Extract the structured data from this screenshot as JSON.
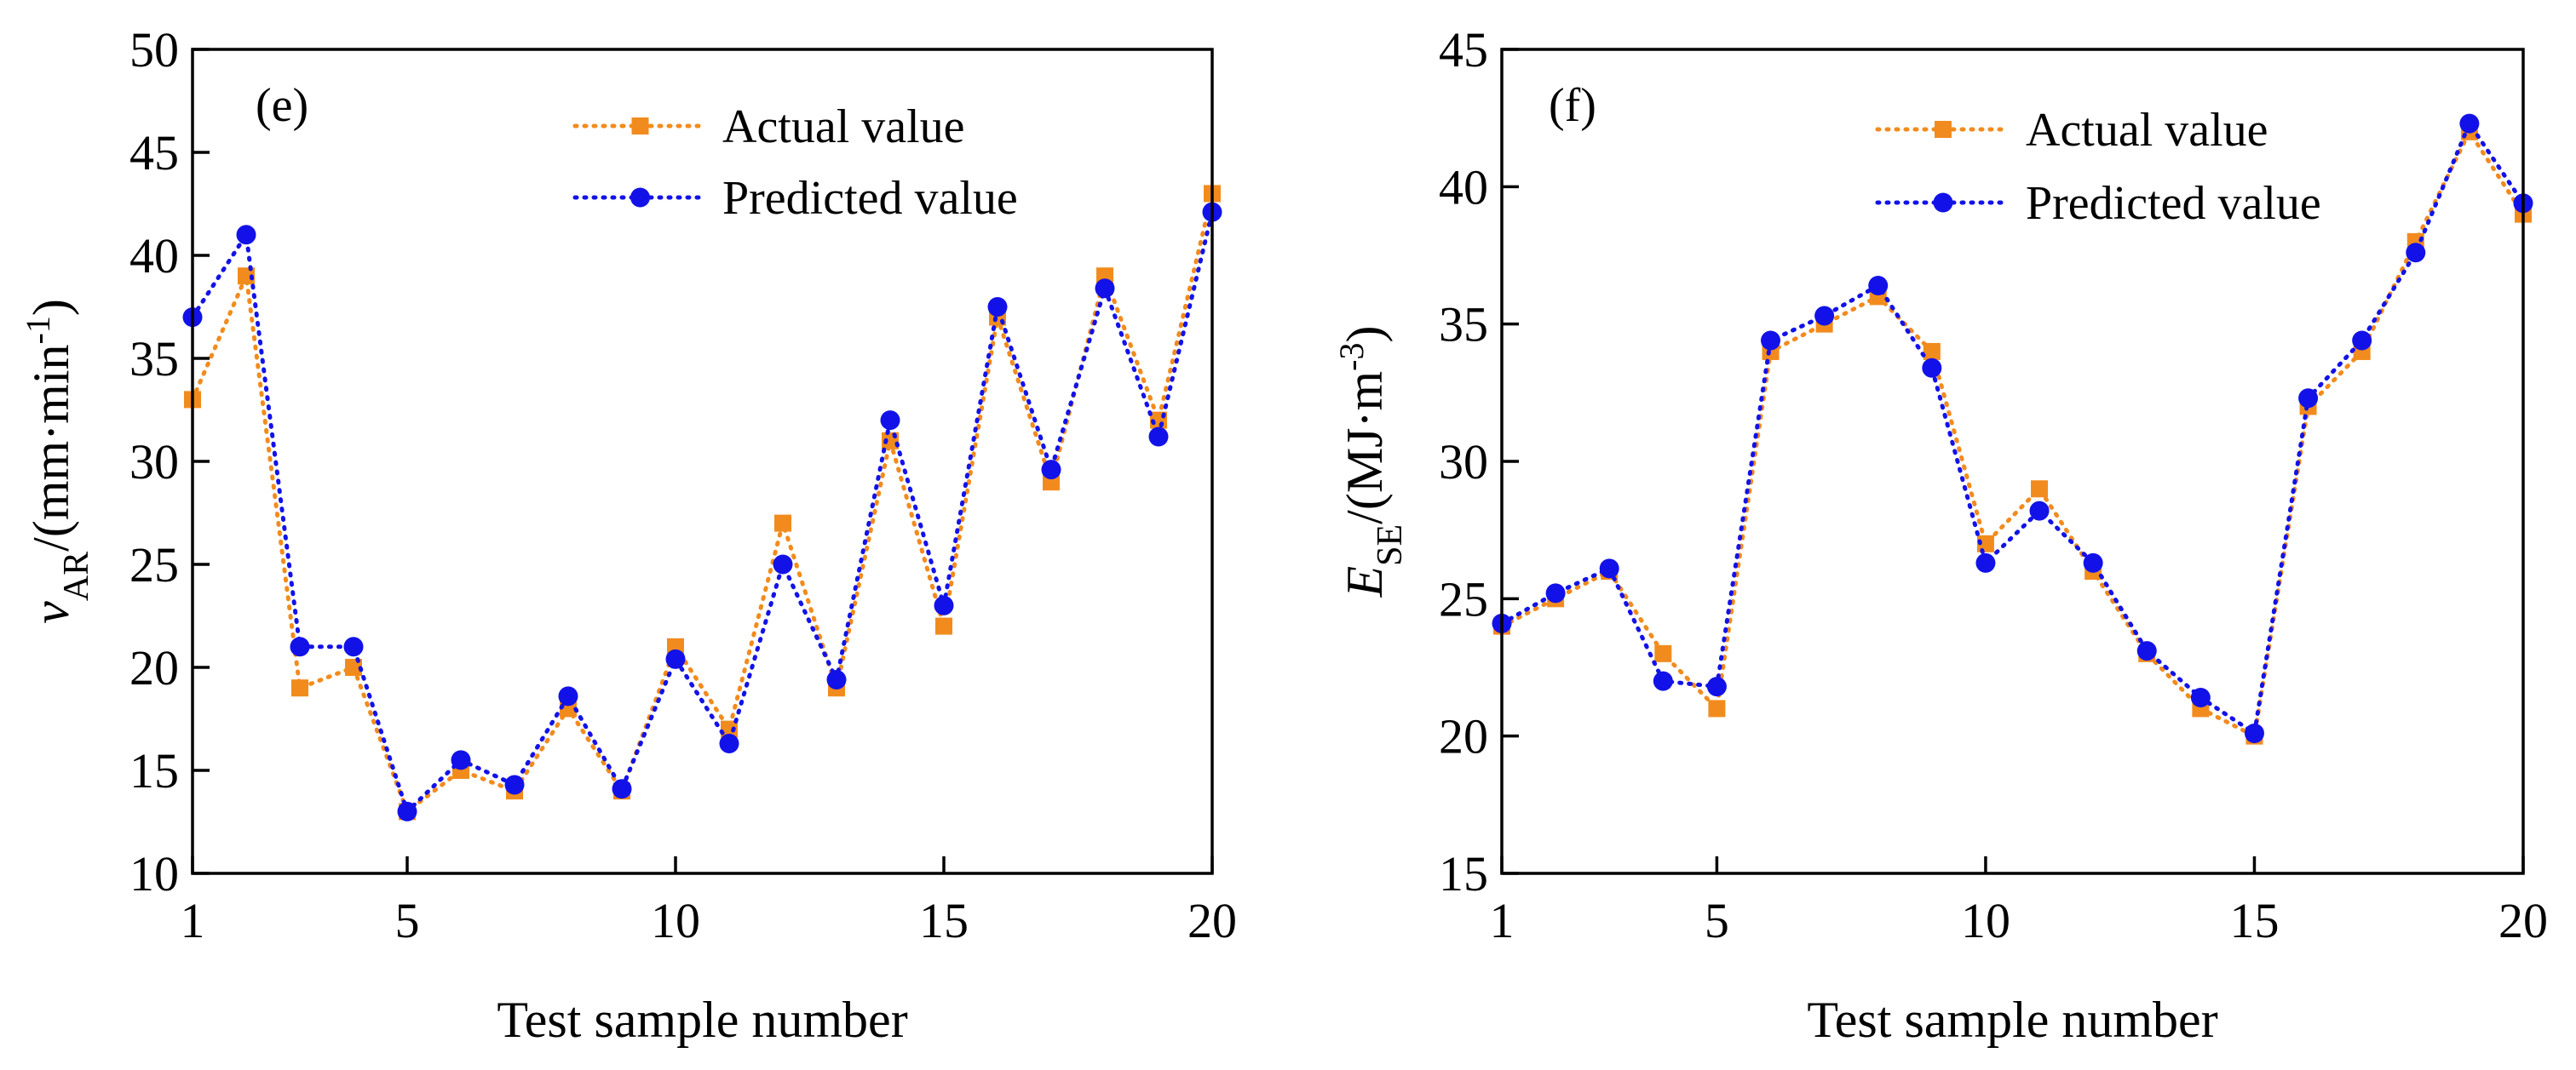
{
  "chart_data": [
    {
      "type": "line",
      "panel_label": "(e)",
      "xlabel": "Test sample number",
      "ylabel": {
        "var": "v",
        "sub": "AR",
        "unit_pre": "/(mm·min",
        "sup": "-1",
        "unit_post": ")"
      },
      "xlim": [
        1,
        20
      ],
      "ylim": [
        10,
        50
      ],
      "xticks": [
        1,
        5,
        10,
        15,
        20
      ],
      "yticks": [
        10,
        15,
        20,
        25,
        30,
        35,
        40,
        45,
        50
      ],
      "x": [
        1,
        2,
        3,
        4,
        5,
        6,
        7,
        8,
        9,
        10,
        11,
        12,
        13,
        14,
        15,
        16,
        17,
        18,
        19,
        20
      ],
      "legend_position": "top-right",
      "series": [
        {
          "name": "Actual value",
          "color": "#f28b1d",
          "marker": "square",
          "values": [
            33,
            39,
            19,
            20,
            13,
            15,
            14,
            18,
            14,
            21,
            17,
            27,
            19,
            31,
            22,
            37,
            29,
            39,
            32,
            43
          ]
        },
        {
          "name": "Predicted value",
          "color": "#1212e8",
          "marker": "circle",
          "values": [
            37,
            41,
            21,
            21,
            13,
            15.5,
            14.3,
            18.6,
            14.1,
            20.4,
            16.3,
            25,
            19.4,
            32,
            23,
            37.5,
            29.6,
            38.4,
            31.2,
            42.1
          ]
        }
      ]
    },
    {
      "type": "line",
      "panel_label": "(f)",
      "xlabel": "Test sample number",
      "ylabel": {
        "var": "E",
        "sub": "SE",
        "unit_pre": "/(MJ·m",
        "sup": "-3",
        "unit_post": ")"
      },
      "xlim": [
        1,
        20
      ],
      "ylim": [
        15,
        45
      ],
      "xticks": [
        1,
        5,
        10,
        15,
        20
      ],
      "yticks": [
        15,
        20,
        25,
        30,
        35,
        40,
        45
      ],
      "x": [
        1,
        2,
        3,
        4,
        5,
        6,
        7,
        8,
        9,
        10,
        11,
        12,
        13,
        14,
        15,
        16,
        17,
        18,
        19,
        20
      ],
      "legend_position": "top-right",
      "series": [
        {
          "name": "Actual value",
          "color": "#f28b1d",
          "marker": "square",
          "values": [
            24,
            25,
            26,
            23,
            21,
            34,
            35,
            36,
            34,
            27,
            29,
            26,
            23,
            21,
            20,
            32,
            34,
            38,
            42,
            39
          ]
        },
        {
          "name": "Predicted value",
          "color": "#1212e8",
          "marker": "circle",
          "values": [
            24.1,
            25.2,
            26.1,
            22,
            21.8,
            34.4,
            35.3,
            36.4,
            33.4,
            26.3,
            28.2,
            26.3,
            23.1,
            21.4,
            20.1,
            32.3,
            34.4,
            37.6,
            42.3,
            39.4
          ]
        }
      ]
    }
  ]
}
